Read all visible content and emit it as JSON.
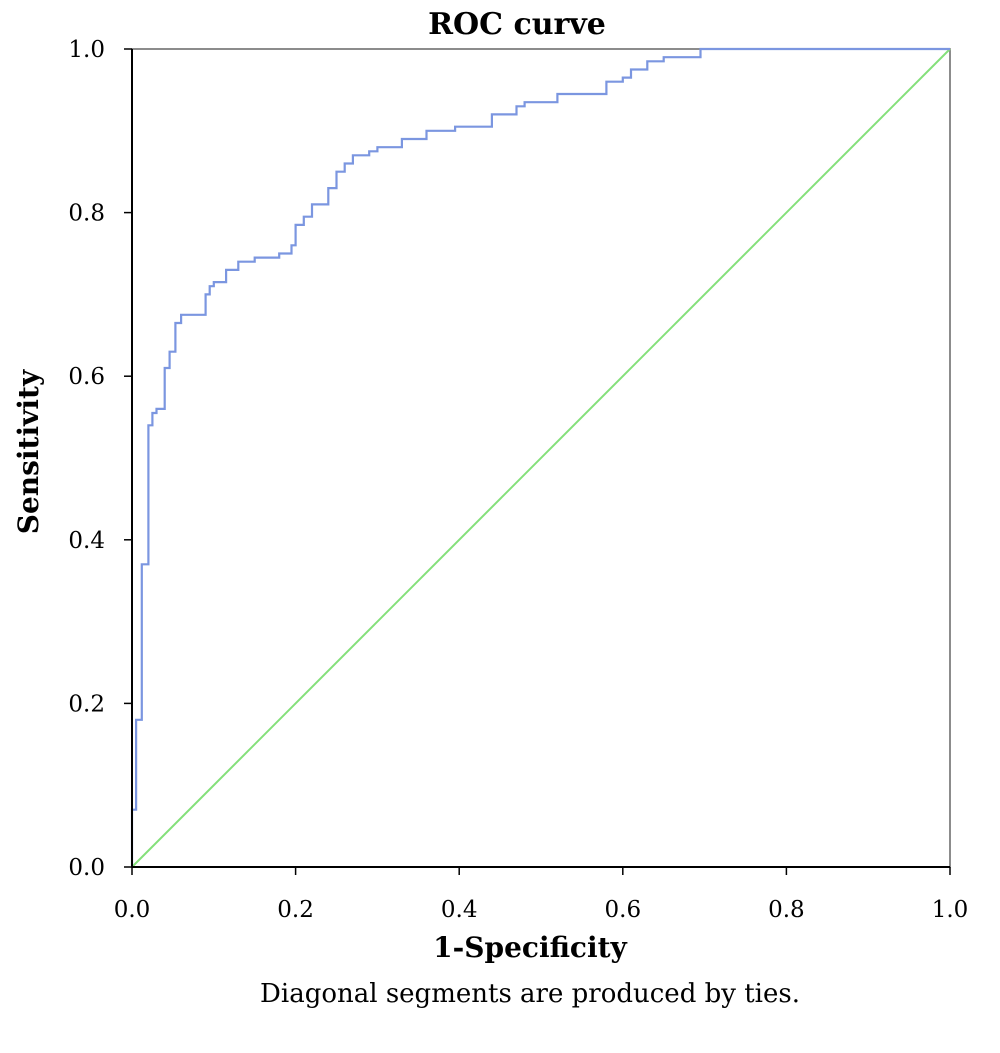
{
  "chart_data": {
    "type": "line",
    "title": "ROC curve",
    "xlabel": "1-Specificity",
    "ylabel": "Sensitivity",
    "footnote": "Diagonal segments are produced by ties.",
    "xlim": [
      0,
      1
    ],
    "ylim": [
      0,
      1
    ],
    "x_ticks": [
      "0.0",
      "0.2",
      "0.4",
      "0.6",
      "0.8",
      "1.0"
    ],
    "y_ticks": [
      "0.0",
      "0.2",
      "0.4",
      "0.6",
      "0.8",
      "1.0"
    ],
    "grid": false,
    "colors": {
      "roc": "#7b96e0",
      "reference": "#84e07a",
      "axis": "#000000",
      "frame": "#666666"
    },
    "series": [
      {
        "x": [
          0.0,
          0.0,
          0.005,
          0.005,
          0.012,
          0.012,
          0.02,
          0.02,
          0.025,
          0.025,
          0.03,
          0.03,
          0.04,
          0.04,
          0.046,
          0.046,
          0.053,
          0.053,
          0.06,
          0.06,
          0.07,
          0.07,
          0.09,
          0.09,
          0.095,
          0.095,
          0.1,
          0.1,
          0.115,
          0.115,
          0.13,
          0.13,
          0.15,
          0.15,
          0.18,
          0.18,
          0.195,
          0.195,
          0.2,
          0.2,
          0.21,
          0.21,
          0.22,
          0.22,
          0.24,
          0.24,
          0.25,
          0.25,
          0.26,
          0.26,
          0.27,
          0.27,
          0.29,
          0.29,
          0.3,
          0.3,
          0.33,
          0.33,
          0.36,
          0.36,
          0.395,
          0.395,
          0.44,
          0.44,
          0.47,
          0.47,
          0.48,
          0.48,
          0.52,
          0.52,
          0.58,
          0.58,
          0.6,
          0.6,
          0.61,
          0.61,
          0.63,
          0.63,
          0.65,
          0.65,
          0.695,
          0.695,
          1.0
        ],
        "y": [
          0.0,
          0.07,
          0.07,
          0.18,
          0.18,
          0.37,
          0.37,
          0.54,
          0.54,
          0.555,
          0.555,
          0.56,
          0.56,
          0.61,
          0.61,
          0.63,
          0.63,
          0.665,
          0.665,
          0.675,
          0.675,
          0.675,
          0.675,
          0.7,
          0.7,
          0.71,
          0.71,
          0.715,
          0.715,
          0.73,
          0.73,
          0.74,
          0.74,
          0.745,
          0.745,
          0.75,
          0.75,
          0.76,
          0.76,
          0.785,
          0.785,
          0.795,
          0.795,
          0.81,
          0.81,
          0.83,
          0.83,
          0.85,
          0.85,
          0.86,
          0.86,
          0.87,
          0.87,
          0.875,
          0.875,
          0.88,
          0.88,
          0.89,
          0.89,
          0.9,
          0.9,
          0.905,
          0.905,
          0.92,
          0.92,
          0.93,
          0.93,
          0.935,
          0.935,
          0.945,
          0.945,
          0.96,
          0.96,
          0.965,
          0.965,
          0.975,
          0.975,
          0.985,
          0.985,
          0.99,
          0.99,
          1.0,
          1.0
        ]
      },
      {
        "x": [
          0.0,
          1.0
        ],
        "y": [
          0.0,
          1.0
        ]
      }
    ]
  }
}
